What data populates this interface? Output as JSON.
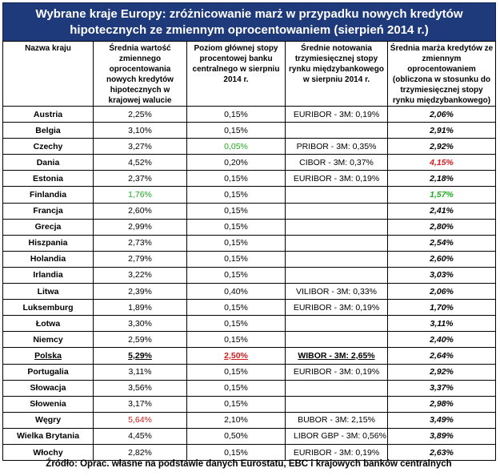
{
  "title": "Wybrane kraje Europy: zróżnicowanie marż w przypadku nowych kredytów hipotecznych ze zmiennym oprocentowaniem (sierpień 2014 r.)",
  "columns": [
    "Nazwa kraju",
    "Średnia wartość zmiennego oprocentowania nowych kredytów hipotecznych w krajowej walucie",
    "Poziom głównej stopy procentowej banku centralnego w sierpniu 2014 r.",
    "Średnie notowania trzymiesięcznej stopy rynku międzybankowego w sierpniu 2014 r.",
    "Średnia marża kredytów ze zmiennym oprocentowaniem (obliczona w stosunku do trzymiesięcznej stopy rynku międzybankowego)"
  ],
  "rows": [
    {
      "country": "Austria",
      "rate": "2,25%",
      "cb": "0,15%",
      "margin": "2,06%"
    },
    {
      "country": "Belgia",
      "rate": "3,10%",
      "cb": "0,15%",
      "margin": "2,91%"
    },
    {
      "country": "Czechy",
      "rate": "3,27%",
      "cb": "0,05%",
      "margin": "2,92%"
    },
    {
      "country": "Dania",
      "rate": "4,52%",
      "cb": "0,20%",
      "margin": "4,15%"
    },
    {
      "country": "Estonia",
      "rate": "2,37%",
      "cb": "0,15%",
      "margin": "2,18%"
    },
    {
      "country": "Finlandia",
      "rate": "1,76%",
      "cb": "0,15%",
      "margin": "1,57%"
    },
    {
      "country": "Francja",
      "rate": "2,60%",
      "cb": "0,15%",
      "margin": "2,41%"
    },
    {
      "country": "Grecja",
      "rate": "2,99%",
      "cb": "0,15%",
      "margin": "2,80%"
    },
    {
      "country": "Hiszpania",
      "rate": "2,73%",
      "cb": "0,15%",
      "margin": "2,54%"
    },
    {
      "country": "Holandia",
      "rate": "2,79%",
      "cb": "0,15%",
      "margin": "2,60%"
    },
    {
      "country": "Irlandia",
      "rate": "3,22%",
      "cb": "0,15%",
      "margin": "3,03%"
    },
    {
      "country": "Litwa",
      "rate": "2,39%",
      "cb": "0,40%",
      "margin": "2,06%"
    },
    {
      "country": "Luksemburg",
      "rate": "1,89%",
      "cb": "0,15%",
      "margin": "1,70%"
    },
    {
      "country": "Łotwa",
      "rate": "3,30%",
      "cb": "0,15%",
      "margin": "3,11%"
    },
    {
      "country": "Niemcy",
      "rate": "2,59%",
      "cb": "0,15%",
      "margin": "2,40%"
    },
    {
      "country": "Polska",
      "rate": "5,29%",
      "cb": "2,50%",
      "margin": "2,64%"
    },
    {
      "country": "Portugalia",
      "rate": "3,11%",
      "cb": "0,15%",
      "margin": "2,92%"
    },
    {
      "country": "Słowacja",
      "rate": "3,56%",
      "cb": "0,15%",
      "margin": "3,37%"
    },
    {
      "country": "Słowenia",
      "rate": "3,17%",
      "cb": "0,15%",
      "margin": "2,98%"
    },
    {
      "country": "Węgry",
      "rate": "5,64%",
      "cb": "2,10%",
      "margin": "3,49%"
    },
    {
      "country": "Wielka Brytania",
      "rate": "4,45%",
      "cb": "0,50%",
      "margin": "3,89%"
    },
    {
      "country": "Włochy",
      "rate": "2,82%",
      "cb": "0,15%",
      "margin": "2,63%"
    }
  ],
  "interbank": {
    "euribor_1": "EURIBOR - 3M: 0,19%",
    "pribor": "PRIBOR - 3M: 0,35%",
    "cibor": "CIBOR - 3M: 0,37%",
    "euribor_2": "EURIBOR - 3M: 0,19%",
    "vilibor": "VILIBOR - 3M: 0,33%",
    "euribor_3": "EURIBOR - 3M: 0,19%",
    "wibor": "WIBOR - 3M: 2,65%",
    "euribor_4": "EURIBOR - 3M: 0,19%",
    "bubor": "BUBOR - 3M: 2,15%",
    "libor": "LIBOR GBP - 3M: 0,56%",
    "euribor_5": "EURIBOR - 3M: 0,19%"
  },
  "colors": {
    "header_bg": "#1f3a7a",
    "highlight_low": "#1faa1f",
    "highlight_high": "#d21c1c"
  },
  "source": "Źródło: Oprac. własne na podstawie danych Eurostatu, EBC i krajowych banków centralnych"
}
